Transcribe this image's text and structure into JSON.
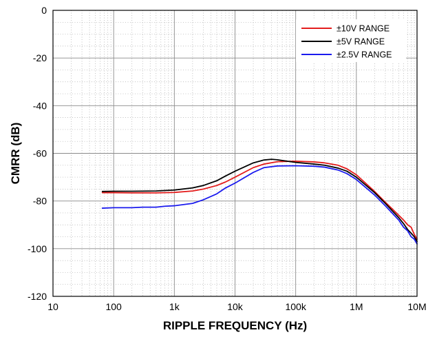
{
  "chart_data": {
    "type": "line",
    "title": "",
    "xlabel": "RIPPLE FREQUENCY (Hz)",
    "ylabel": "CMRR (dB)",
    "x_scale": "log",
    "xlim": [
      10,
      10000000
    ],
    "ylim": [
      -120,
      0
    ],
    "x_ticks": [
      10,
      100,
      1000,
      10000,
      100000,
      1000000,
      10000000
    ],
    "x_tick_labels": [
      "10",
      "100",
      "1k",
      "10k",
      "100k",
      "1M",
      "10M"
    ],
    "y_ticks": [
      0,
      -20,
      -40,
      -60,
      -80,
      -100,
      -120
    ],
    "y_tick_labels": [
      "0",
      "-20",
      "-40",
      "-60",
      "-80",
      "-100",
      "-120"
    ],
    "grid": "major and minor",
    "legend_position": "top-right",
    "series": [
      {
        "name": "±10V RANGE",
        "color": "#e31b1b",
        "x": [
          65,
          100,
          200,
          500,
          1000,
          2000,
          3000,
          5000,
          7000,
          10000,
          20000,
          30000,
          50000,
          100000,
          200000,
          300000,
          500000,
          700000,
          1000000,
          2000000,
          3000000,
          5000000,
          6000000,
          7000000,
          8000000,
          9000000,
          10000000
        ],
        "values": [
          -76.5,
          -76.5,
          -76.6,
          -76.6,
          -76.4,
          -75.8,
          -75.0,
          -73.5,
          -72.0,
          -70.0,
          -66.0,
          -64.5,
          -63.5,
          -63.3,
          -63.6,
          -64.0,
          -65.0,
          -66.5,
          -69.0,
          -76.0,
          -80.5,
          -86.0,
          -88.0,
          -90.0,
          -91.0,
          -94.0,
          -96.0
        ]
      },
      {
        "name": "±5V RANGE",
        "color": "#000000",
        "x": [
          65,
          100,
          200,
          500,
          1000,
          2000,
          3000,
          5000,
          7000,
          10000,
          20000,
          30000,
          40000,
          50000,
          100000,
          200000,
          300000,
          500000,
          700000,
          1000000,
          2000000,
          3000000,
          5000000,
          6000000,
          7000000,
          8000000,
          9000000,
          10000000
        ],
        "values": [
          -76.0,
          -75.9,
          -75.9,
          -75.8,
          -75.4,
          -74.5,
          -73.5,
          -71.5,
          -69.5,
          -67.5,
          -64.0,
          -62.8,
          -62.5,
          -62.7,
          -63.8,
          -64.5,
          -65.0,
          -66.2,
          -67.5,
          -70.0,
          -76.5,
          -81.0,
          -87.0,
          -89.5,
          -92.0,
          -93.5,
          -95.0,
          -97.0
        ]
      },
      {
        "name": "±2.5V RANGE",
        "color": "#1a1aee",
        "x": [
          65,
          100,
          200,
          300,
          500,
          700,
          1000,
          2000,
          3000,
          5000,
          7000,
          10000,
          20000,
          30000,
          50000,
          100000,
          200000,
          300000,
          500000,
          700000,
          1000000,
          2000000,
          3000000,
          5000000,
          6000000,
          7000000,
          8000000,
          9000000,
          10000000
        ],
        "values": [
          -83.0,
          -82.8,
          -82.8,
          -82.6,
          -82.6,
          -82.2,
          -82.0,
          -81.0,
          -79.5,
          -77.0,
          -74.5,
          -72.5,
          -68.0,
          -66.0,
          -65.3,
          -65.2,
          -65.4,
          -65.8,
          -67.0,
          -68.5,
          -71.0,
          -77.5,
          -82.0,
          -88.0,
          -91.0,
          -92.5,
          -95.0,
          -96.0,
          -98.0
        ]
      }
    ]
  }
}
